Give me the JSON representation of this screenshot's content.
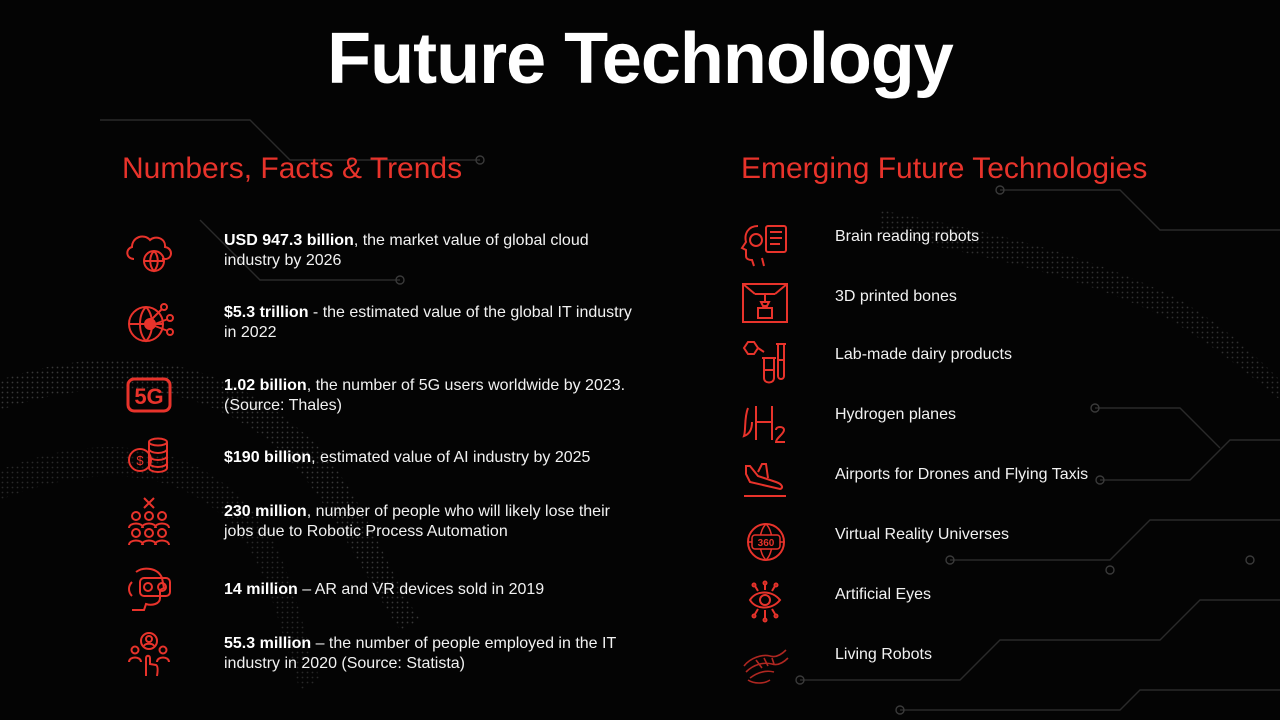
{
  "title": "Future Technology",
  "left_heading": "Numbers, Facts & Trends",
  "right_heading": "Emerging Future Technologies",
  "accent_color": "#e8332b",
  "facts": [
    {
      "icon": "cloud-globe-icon",
      "bold": "USD 947.3 billion",
      "rest": ", the market value of global cloud industry by 2026"
    },
    {
      "icon": "network-globe-icon",
      "bold": "$5.3 trillion",
      "rest": " - the estimated value of the global IT industry in 2022"
    },
    {
      "icon": "5g-icon",
      "icon_text": "5G",
      "bold": "1.02 billion",
      "rest": ", the number of 5G users worldwide by 2023. (Source: Thales)"
    },
    {
      "icon": "coins-icon",
      "bold": "$190 billion",
      "rest": ", estimated value of AI industry by 2025"
    },
    {
      "icon": "people-cross-icon",
      "bold": "230 million",
      "rest": ", number of people who will likely lose their jobs due to Robotic Process Automation"
    },
    {
      "icon": "vr-headset-icon",
      "bold": "14 million",
      "rest": " – AR and VR devices sold in 2019"
    },
    {
      "icon": "employees-icon",
      "bold": "55.3 million",
      "rest": " – the number of people employed in the IT industry in 2020 (Source: Statista)"
    }
  ],
  "technologies": [
    {
      "icon": "brain-robot-icon",
      "label": "Brain reading robots"
    },
    {
      "icon": "3d-printer-icon",
      "label": "3D printed bones"
    },
    {
      "icon": "lab-flask-icon",
      "label": "Lab-made dairy products"
    },
    {
      "icon": "hydrogen-icon",
      "label": "Hydrogen planes"
    },
    {
      "icon": "airplane-landing-icon",
      "label": "Airports for Drones and Flying Taxis"
    },
    {
      "icon": "vr-360-icon",
      "icon_text": "360",
      "label": "Virtual Reality Universes"
    },
    {
      "icon": "artificial-eye-icon",
      "label": "Artificial Eyes"
    },
    {
      "icon": "robot-hand-icon",
      "label": "Living Robots"
    }
  ]
}
